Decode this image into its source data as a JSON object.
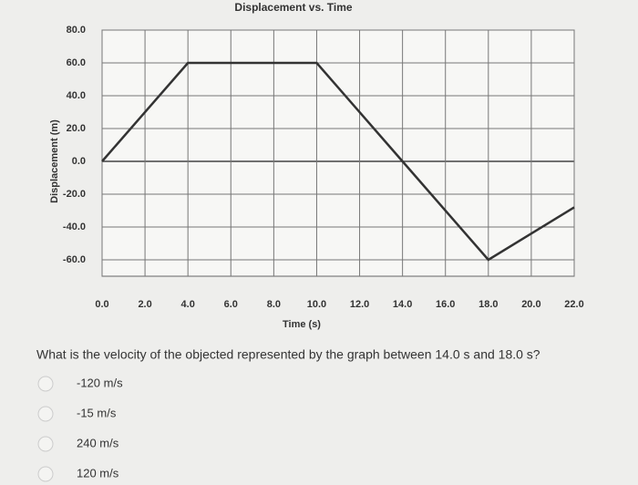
{
  "chart_data": {
    "type": "line",
    "title": "Displacement vs. Time",
    "x_label": "Time (s)",
    "y_label": "Displacement (m)",
    "x": [
      0,
      4,
      10,
      14,
      18,
      22
    ],
    "series": [
      {
        "name": "Displacement",
        "color": "#333333",
        "values": [
          0,
          60,
          60,
          0,
          -60,
          -28
        ]
      }
    ],
    "xlim": [
      0,
      22
    ],
    "xticks": [
      {
        "value": 0,
        "label": "0.0"
      },
      {
        "value": 2,
        "label": "2.0"
      },
      {
        "value": 4,
        "label": "4.0"
      },
      {
        "value": 6,
        "label": "6.0"
      },
      {
        "value": 8,
        "label": "8.0"
      },
      {
        "value": 10,
        "label": "10.0"
      },
      {
        "value": 12,
        "label": "12.0"
      },
      {
        "value": 14,
        "label": "14.0"
      },
      {
        "value": 16,
        "label": "16.0"
      },
      {
        "value": 18,
        "label": "18.0"
      },
      {
        "value": 20,
        "label": "20.0"
      },
      {
        "value": 22,
        "label": "22.0"
      }
    ],
    "ylim": [
      -70,
      80
    ],
    "yticks": [
      {
        "value": 80,
        "label": "80.0"
      },
      {
        "value": 60,
        "label": "60.0"
      },
      {
        "value": 40,
        "label": "40.0"
      },
      {
        "value": 20,
        "label": "20.0"
      },
      {
        "value": 0,
        "label": "0.0"
      },
      {
        "value": -20,
        "label": "-20.0"
      },
      {
        "value": -40,
        "label": "-40.0"
      },
      {
        "value": -60,
        "label": "-60.0"
      }
    ],
    "grid": true
  },
  "question": {
    "text": "What is the velocity of the objected represented by the graph between 14.0 s and 18.0 s?",
    "options": [
      "-120 m/s",
      "-15 m/s",
      "240 m/s",
      "120 m/s"
    ]
  }
}
